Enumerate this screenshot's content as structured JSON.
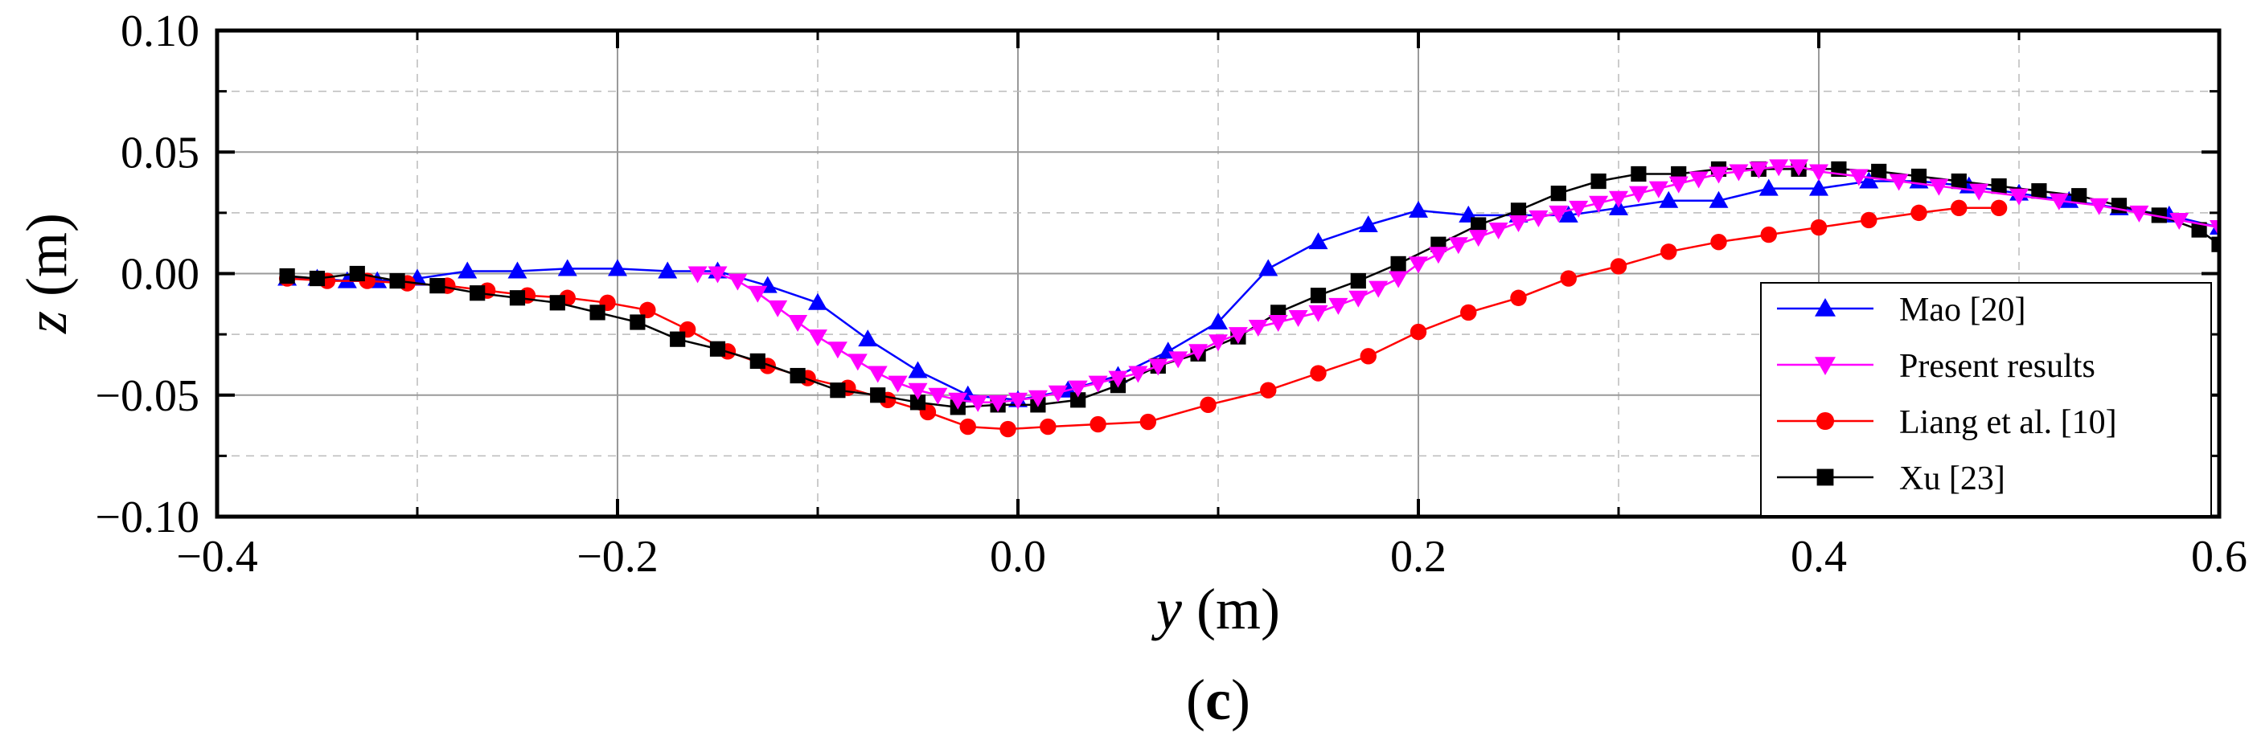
{
  "chart_data": {
    "type": "line",
    "title": "",
    "xlabel": {
      "symbol": "y",
      "unit": " (m)"
    },
    "ylabel": {
      "symbol": "z",
      "unit": " (m)"
    },
    "xlim": [
      -0.4,
      0.6
    ],
    "ylim": [
      -0.1,
      0.1
    ],
    "xticks": [
      -0.4,
      -0.2,
      0.0,
      0.2,
      0.4,
      0.6
    ],
    "xtick_labels": [
      "−0.4",
      "−0.2",
      "0.0",
      "0.2",
      "0.4",
      "0.6"
    ],
    "yticks": [
      -0.1,
      -0.05,
      0.0,
      0.05,
      0.1
    ],
    "ytick_labels": [
      "−0.10",
      "−0.05",
      "0.00",
      "0.05",
      "0.10"
    ],
    "grid": true,
    "legend_position": "lower-right",
    "panel_label": {
      "open": "(",
      "letter": "c",
      "close": ")"
    },
    "series": [
      {
        "name": "Mao [20]",
        "color": "#0000ff",
        "marker": "triangle-up",
        "x": [
          -0.365,
          -0.35,
          -0.335,
          -0.32,
          -0.3,
          -0.275,
          -0.25,
          -0.225,
          -0.2,
          -0.175,
          -0.15,
          -0.125,
          -0.1,
          -0.075,
          -0.05,
          -0.025,
          0.0,
          0.025,
          0.05,
          0.075,
          0.1,
          0.125,
          0.15,
          0.175,
          0.2,
          0.225,
          0.25,
          0.275,
          0.3,
          0.325,
          0.35,
          0.375,
          0.4,
          0.425,
          0.45,
          0.475,
          0.5,
          0.525,
          0.55,
          0.575,
          0.6
        ],
        "y": [
          -0.002,
          -0.002,
          -0.003,
          -0.003,
          -0.002,
          0.001,
          0.001,
          0.002,
          0.002,
          0.001,
          0.001,
          -0.005,
          -0.012,
          -0.027,
          -0.04,
          -0.05,
          -0.052,
          -0.048,
          -0.042,
          -0.032,
          -0.02,
          0.002,
          0.013,
          0.02,
          0.026,
          0.024,
          0.024,
          0.024,
          0.027,
          0.03,
          0.03,
          0.035,
          0.035,
          0.038,
          0.038,
          0.036,
          0.033,
          0.03,
          0.027,
          0.024,
          0.019
        ]
      },
      {
        "name": "Present results",
        "color": "#ff00ff",
        "marker": "triangle-down",
        "x": [
          -0.16,
          -0.15,
          -0.14,
          -0.13,
          -0.12,
          -0.11,
          -0.1,
          -0.09,
          -0.08,
          -0.07,
          -0.06,
          -0.05,
          -0.04,
          -0.03,
          -0.02,
          -0.01,
          0.0,
          0.01,
          0.02,
          0.03,
          0.04,
          0.05,
          0.06,
          0.07,
          0.08,
          0.09,
          0.1,
          0.11,
          0.12,
          0.13,
          0.14,
          0.15,
          0.16,
          0.17,
          0.18,
          0.19,
          0.2,
          0.21,
          0.22,
          0.23,
          0.24,
          0.25,
          0.26,
          0.27,
          0.28,
          0.29,
          0.3,
          0.31,
          0.32,
          0.33,
          0.34,
          0.35,
          0.36,
          0.37,
          0.38,
          0.39,
          0.4,
          0.42,
          0.44,
          0.46,
          0.48,
          0.5,
          0.52,
          0.54,
          0.56,
          0.58,
          0.6
        ],
        "y": [
          0.0,
          0.0,
          -0.003,
          -0.008,
          -0.014,
          -0.02,
          -0.026,
          -0.031,
          -0.036,
          -0.041,
          -0.045,
          -0.048,
          -0.05,
          -0.052,
          -0.053,
          -0.053,
          -0.052,
          -0.051,
          -0.049,
          -0.047,
          -0.045,
          -0.043,
          -0.041,
          -0.038,
          -0.035,
          -0.032,
          -0.028,
          -0.025,
          -0.022,
          -0.02,
          -0.018,
          -0.016,
          -0.013,
          -0.01,
          -0.006,
          -0.002,
          0.004,
          0.008,
          0.012,
          0.015,
          0.018,
          0.021,
          0.023,
          0.025,
          0.027,
          0.029,
          0.031,
          0.033,
          0.035,
          0.037,
          0.039,
          0.041,
          0.042,
          0.043,
          0.044,
          0.044,
          0.042,
          0.04,
          0.038,
          0.036,
          0.034,
          0.032,
          0.03,
          0.028,
          0.025,
          0.022,
          0.019
        ]
      },
      {
        "name": "Liang et al. [10]",
        "color": "#ff0000",
        "marker": "circle",
        "x": [
          -0.365,
          -0.345,
          -0.325,
          -0.305,
          -0.285,
          -0.265,
          -0.245,
          -0.225,
          -0.205,
          -0.185,
          -0.165,
          -0.145,
          -0.125,
          -0.105,
          -0.085,
          -0.065,
          -0.045,
          -0.025,
          -0.005,
          0.015,
          0.04,
          0.065,
          0.095,
          0.125,
          0.15,
          0.175,
          0.2,
          0.225,
          0.25,
          0.275,
          0.3,
          0.325,
          0.35,
          0.375,
          0.4,
          0.425,
          0.45,
          0.47,
          0.49
        ],
        "y": [
          -0.002,
          -0.003,
          -0.003,
          -0.004,
          -0.005,
          -0.007,
          -0.009,
          -0.01,
          -0.012,
          -0.015,
          -0.023,
          -0.032,
          -0.038,
          -0.043,
          -0.047,
          -0.052,
          -0.057,
          -0.063,
          -0.064,
          -0.063,
          -0.062,
          -0.061,
          -0.054,
          -0.048,
          -0.041,
          -0.034,
          -0.024,
          -0.016,
          -0.01,
          -0.002,
          0.003,
          0.009,
          0.013,
          0.016,
          0.019,
          0.022,
          0.025,
          0.027,
          0.027
        ]
      },
      {
        "name": "Xu [23]",
        "color": "#000000",
        "marker": "square",
        "x": [
          -0.365,
          -0.35,
          -0.33,
          -0.31,
          -0.29,
          -0.27,
          -0.25,
          -0.23,
          -0.21,
          -0.19,
          -0.17,
          -0.15,
          -0.13,
          -0.11,
          -0.09,
          -0.07,
          -0.05,
          -0.03,
          -0.01,
          0.01,
          0.03,
          0.05,
          0.07,
          0.09,
          0.11,
          0.13,
          0.15,
          0.17,
          0.19,
          0.21,
          0.23,
          0.25,
          0.27,
          0.29,
          0.31,
          0.33,
          0.35,
          0.37,
          0.39,
          0.41,
          0.43,
          0.45,
          0.47,
          0.49,
          0.51,
          0.53,
          0.55,
          0.57,
          0.59,
          0.6
        ],
        "y": [
          -0.001,
          -0.002,
          0.0,
          -0.003,
          -0.005,
          -0.008,
          -0.01,
          -0.012,
          -0.016,
          -0.02,
          -0.027,
          -0.031,
          -0.036,
          -0.042,
          -0.048,
          -0.05,
          -0.053,
          -0.055,
          -0.054,
          -0.054,
          -0.052,
          -0.046,
          -0.038,
          -0.033,
          -0.026,
          -0.016,
          -0.009,
          -0.003,
          0.004,
          0.012,
          0.02,
          0.026,
          0.033,
          0.038,
          0.041,
          0.041,
          0.043,
          0.043,
          0.043,
          0.043,
          0.042,
          0.04,
          0.038,
          0.036,
          0.034,
          0.032,
          0.028,
          0.024,
          0.018,
          0.012
        ]
      }
    ]
  }
}
